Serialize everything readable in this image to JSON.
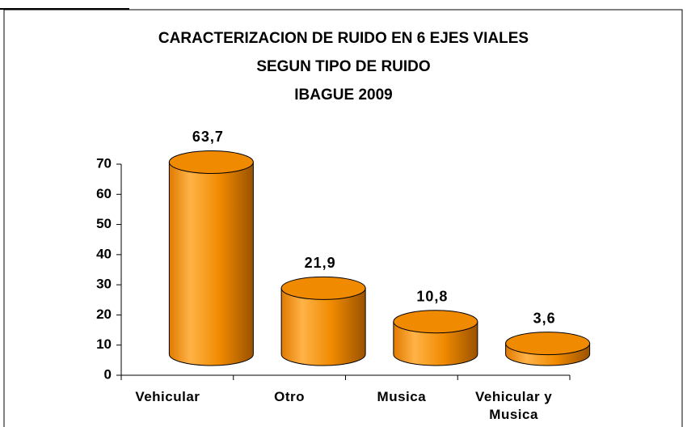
{
  "chart_data": {
    "type": "bar",
    "title": [
      "CARACTERIZACION DE RUIDO EN 6 EJES VIALES",
      "SEGUN TIPO DE RUIDO",
      "IBAGUE 2009"
    ],
    "categories": [
      "Vehicular",
      "Otro",
      "Musica",
      "Vehicular y Musica"
    ],
    "values": [
      63.7,
      21.9,
      10.8,
      3.6
    ],
    "value_labels": [
      "63,7",
      "21,9",
      "10,8",
      "3,6"
    ],
    "color": "#f08a00",
    "ylim": [
      0,
      70
    ],
    "yticks": [
      0,
      10,
      20,
      30,
      40,
      50,
      60,
      70
    ]
  }
}
